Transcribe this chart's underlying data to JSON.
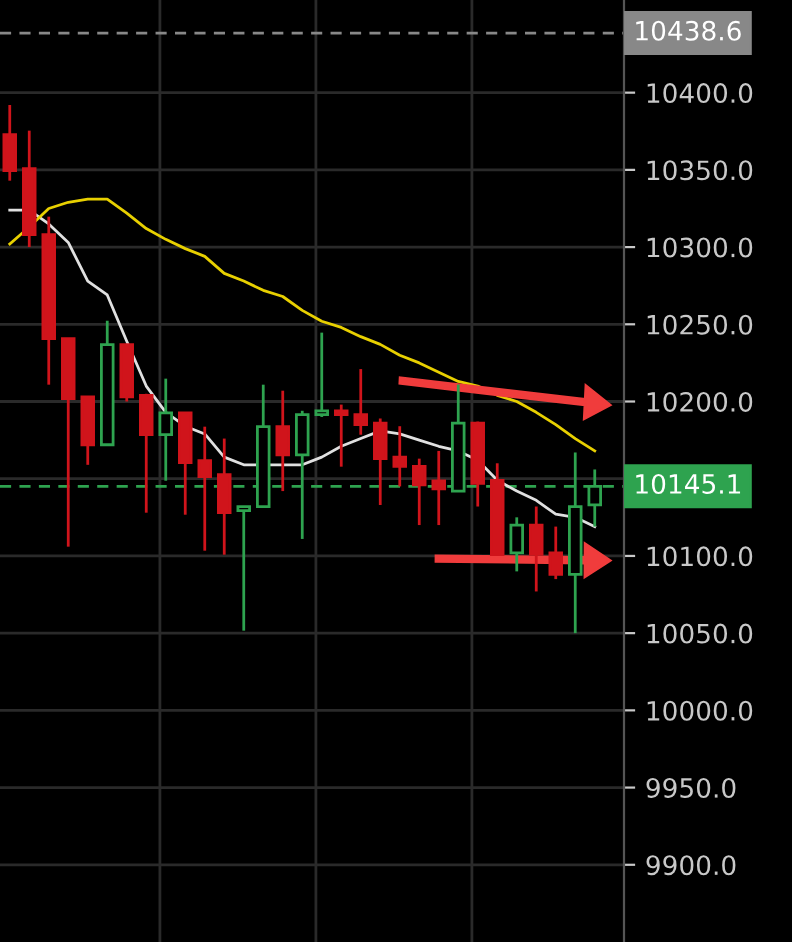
{
  "chart_data": {
    "type": "candlestick",
    "categories": [
      null,
      null,
      null,
      null,
      null,
      null,
      null,
      null,
      null,
      null,
      null,
      null,
      null,
      null,
      null,
      null,
      null,
      null,
      null,
      null,
      null,
      null,
      null,
      null,
      null,
      null,
      null,
      null,
      null,
      null,
      null
    ],
    "ohlc": [
      [
        10372.8,
        10392,
        10343,
        10349.5
      ],
      [
        10350.8,
        10375.4,
        10300,
        10308
      ],
      [
        10308,
        10319.7,
        10210.9,
        10240.7
      ],
      [
        10240.7,
        10241,
        10106,
        10201.8
      ],
      [
        10203,
        10203,
        10159,
        10172
      ],
      [
        10172,
        10252.3,
        10172,
        10236.8
      ],
      [
        10236.8,
        10237,
        10200,
        10203
      ],
      [
        10204,
        10205,
        10128,
        10178.5
      ],
      [
        10178.5,
        10214.8,
        10148.7,
        10192.7
      ],
      [
        10192.7,
        10193,
        10126.7,
        10160.4
      ],
      [
        10161.7,
        10183.7,
        10103.4,
        10151.3
      ],
      [
        10152.6,
        10176,
        10100.8,
        10128
      ],
      [
        10129.3,
        10132,
        10051.6,
        10132
      ],
      [
        10132,
        10210.9,
        10132,
        10183.7
      ],
      [
        10183.7,
        10207,
        10142,
        10165.5
      ],
      [
        10165.5,
        10194,
        10111,
        10191.5
      ],
      [
        10191.5,
        10244.6,
        10190,
        10194
      ],
      [
        10194,
        10198,
        10157.8,
        10191.5
      ],
      [
        10191.5,
        10221,
        10178.5,
        10185
      ],
      [
        10186,
        10189,
        10133,
        10163
      ],
      [
        10164,
        10184,
        10145,
        10158
      ],
      [
        10158,
        10163,
        10120,
        10146
      ],
      [
        10148.6,
        10168,
        10120,
        10143.5
      ],
      [
        10142,
        10211,
        10142,
        10186
      ],
      [
        10186,
        10187,
        10132,
        10147
      ],
      [
        10149,
        10160,
        10100,
        10100.8
      ],
      [
        10102,
        10125,
        10090,
        10120
      ],
      [
        10120,
        10132,
        10077,
        10101
      ],
      [
        10102,
        10119,
        10085,
        10088
      ],
      [
        10088,
        10167,
        10050,
        10132
      ],
      [
        10133,
        10156,
        10119,
        10145.1
      ]
    ],
    "colors": [
      "#d0141b",
      "#d0141b",
      "#d0141b",
      "#d0141b",
      "#d0141b",
      "#2ea34f",
      "#d0141b",
      "#d0141b",
      "#2ea34f",
      "#d0141b",
      "#d0141b",
      "#d0141b",
      "#2ea34f",
      "#2ea34f",
      "#d0141b",
      "#2ea34f",
      "#2ea34f",
      "#d0141b",
      "#d0141b",
      "#d0141b",
      "#d0141b",
      "#d0141b",
      "#d0141b",
      "#2ea34f",
      "#d0141b",
      "#d0141b",
      "#2ea34f",
      "#d0141b",
      "#d0141b",
      "#2ea34f",
      "#2ea34f"
    ],
    "series": [
      {
        "type": "line",
        "color": "#e0e0e0",
        "values": [
          10324,
          10324,
          10315,
          10303,
          10278,
          10269,
          10239,
          10210,
          10193,
          10184,
          10179,
          10164,
          10159,
          10159,
          10159,
          10159,
          10164,
          10171,
          10176,
          10181,
          10179,
          10175,
          10171,
          10168,
          10162,
          10149,
          10142,
          10136,
          10127,
          10125,
          10119
        ]
      },
      {
        "type": "line",
        "color": "#e8d000",
        "values": [
          10302,
          10313,
          10325,
          10329,
          10331,
          10331,
          10322,
          10312,
          10305,
          10299,
          10294,
          10283,
          10278,
          10272,
          10268,
          10259,
          10252,
          10248,
          10242,
          10237,
          10230,
          10225,
          10219,
          10213,
          10210,
          10204,
          10200,
          10193,
          10185,
          10176,
          10168
        ]
      }
    ],
    "ylim": [
      9850,
      10460
    ],
    "yticks": [
      {
        "value": 9900,
        "label": "9900.0"
      },
      {
        "value": 9950,
        "label": "9950.0"
      },
      {
        "value": 10000,
        "label": "10000.0"
      },
      {
        "value": 10050,
        "label": "10050.0"
      },
      {
        "value": 10100,
        "label": "10100.0"
      },
      {
        "value": 10150,
        "label": null
      },
      {
        "value": 10200,
        "label": "10200.0"
      },
      {
        "value": 10250,
        "label": "10250.0"
      },
      {
        "value": 10300,
        "label": "10300.0"
      },
      {
        "value": 10350,
        "label": "10350.0"
      },
      {
        "value": 10400,
        "label": "10400.0"
      }
    ],
    "ref_lines": [
      {
        "axis": "y",
        "value": 10145.1,
        "label": "10145.1",
        "color": "#2ea34f",
        "line_style": "dashed"
      },
      {
        "axis": "y",
        "value": 10438.6,
        "label": "10438.6",
        "color": "#888888",
        "line_style": "dashed"
      }
    ],
    "grid": true,
    "tick_labels": "y"
  }
}
